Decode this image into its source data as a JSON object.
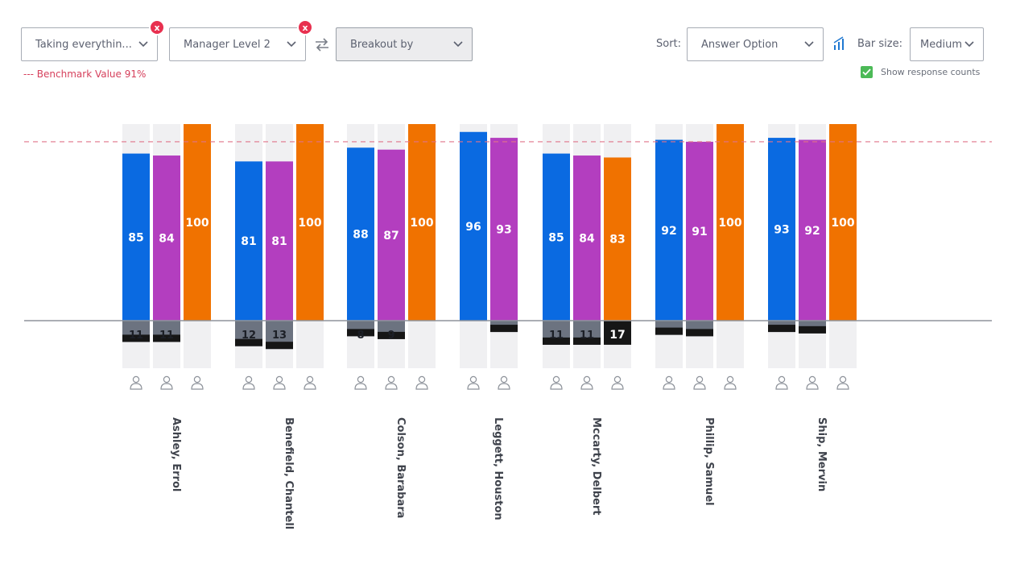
{
  "filters": {
    "filter1": {
      "label": "Taking everythin...",
      "remove": "x"
    },
    "filter2": {
      "label": "Manager Level 2",
      "remove": "x"
    },
    "breakout": {
      "label": "Breakout by"
    }
  },
  "sort": {
    "label": "Sort:",
    "value": "Answer Option"
  },
  "bar_size": {
    "label": "Bar size:",
    "value": "Medium"
  },
  "benchmark": {
    "legend": "--- Benchmark Value 91%"
  },
  "show_counts": {
    "label": "Show response counts",
    "checked": true
  },
  "colors": {
    "series1": "#0a6ae1",
    "series2": "#b33ebf",
    "series3": "#f07200",
    "count_bar": "#6c7380",
    "count_cap": "#161616",
    "count_dark": "#161616",
    "track": "#f0f0f2",
    "benchmark": "#e0738a",
    "axis": "#8f949c"
  },
  "chart_data": {
    "type": "bar",
    "categories": [
      "Ashley, Errol",
      "Benefield, Chantell",
      "Colson, Barabara",
      "Leggett, Houston",
      "Mccarty, Delbert",
      "Phillip, Samuel",
      "Ship, Mervin"
    ],
    "series": [
      {
        "values": [
          85,
          81,
          88,
          96,
          85,
          92,
          93
        ]
      },
      {
        "values": [
          84,
          81,
          87,
          93,
          84,
          91,
          92
        ]
      },
      {
        "values": [
          100,
          100,
          100,
          null,
          83,
          100,
          100
        ]
      }
    ],
    "response_counts": [
      [
        11,
        12,
        8,
        null,
        11,
        null,
        null
      ],
      [
        11,
        13,
        9,
        null,
        11,
        null,
        null
      ],
      [
        null,
        null,
        null,
        null,
        17,
        null,
        null
      ]
    ],
    "count_bar_values": [
      [
        15,
        18,
        11,
        0,
        17,
        10,
        8
      ],
      [
        15,
        20,
        13,
        8,
        17,
        11,
        9
      ],
      [
        0,
        0,
        0,
        null,
        17,
        0,
        0
      ]
    ],
    "benchmark": 91,
    "ylim": [
      0,
      100
    ],
    "count_lim": [
      0,
      25
    ],
    "grid": false,
    "legend": "none"
  }
}
